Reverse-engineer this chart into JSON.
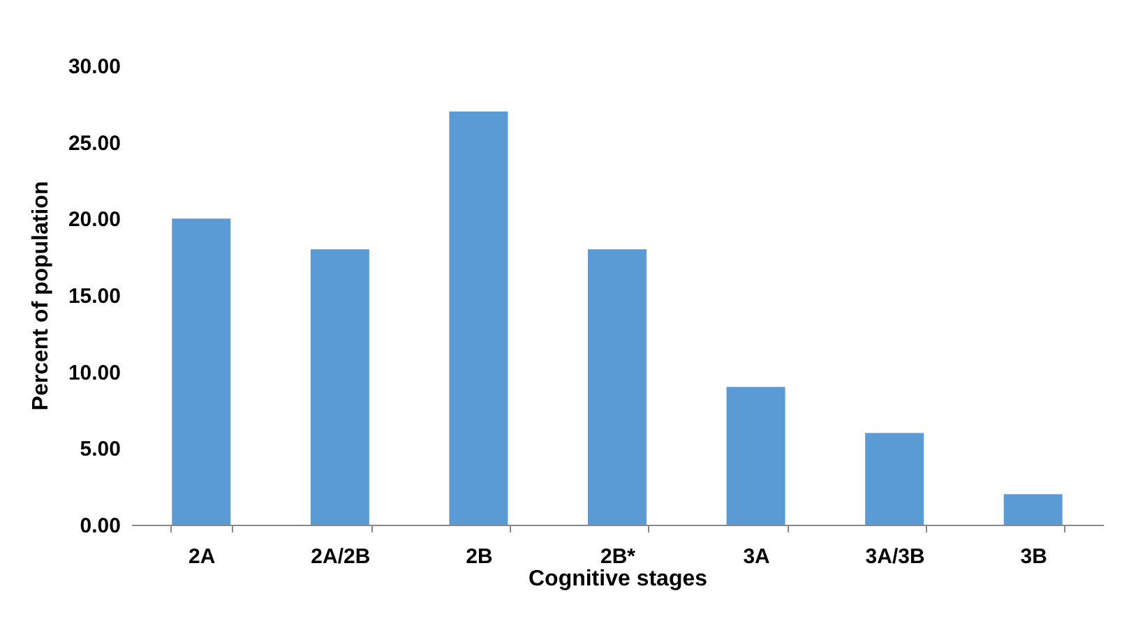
{
  "chart_data": {
    "type": "bar",
    "xlabel": "Cognitive stages",
    "ylabel": "Percent of population",
    "categories": [
      "2A",
      "2A/2B",
      "2B",
      "2B*",
      "3A",
      "3A/3B",
      "3B"
    ],
    "values": [
      20,
      18,
      27,
      18,
      9,
      6,
      2
    ],
    "color": "#5b9bd5",
    "ylim": [
      0,
      30
    ],
    "yticks": [
      {
        "value": 0,
        "label": "0.00"
      },
      {
        "value": 5,
        "label": "5.00"
      },
      {
        "value": 10,
        "label": "10.00"
      },
      {
        "value": 15,
        "label": "15.00"
      },
      {
        "value": 20,
        "label": "20.00"
      },
      {
        "value": 25,
        "label": "25.00"
      },
      {
        "value": 30,
        "label": "30.00"
      }
    ],
    "grid": false
  }
}
